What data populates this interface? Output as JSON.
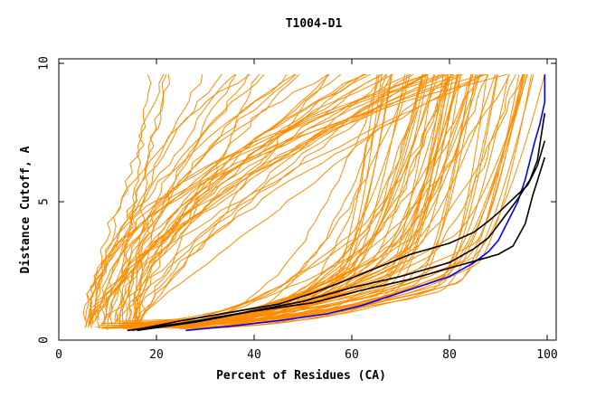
{
  "chart_data": {
    "type": "line",
    "title": "T1004-D1",
    "xlabel": "Percent of Residues (CA)",
    "ylabel": "Distance Cutoff, A",
    "xlim": [
      0,
      100
    ],
    "ylim": [
      0,
      10
    ],
    "xticks": [
      "0",
      "20",
      "40",
      "60",
      "80",
      "100"
    ],
    "yticks": [
      "0",
      "5",
      "10"
    ],
    "grid": false,
    "colors": {
      "highlight": "#0000ff",
      "reference": "#000000",
      "background_models": "#ff8c00"
    },
    "series": [
      {
        "color": "#0000ff",
        "x": [
          26,
          35,
          45,
          55,
          62,
          68,
          75,
          80,
          85,
          88,
          90,
          92,
          94,
          95.5,
          96.5,
          97.5,
          98.5,
          99,
          99.5,
          99.5
        ],
        "y": [
          0.35,
          0.5,
          0.7,
          0.95,
          1.25,
          1.6,
          2.0,
          2.3,
          2.8,
          3.2,
          3.6,
          4.3,
          5.0,
          5.8,
          6.5,
          7.2,
          7.8,
          8.2,
          8.6,
          9.6
        ]
      },
      {
        "color": "#000000",
        "x": [
          15,
          25,
          35,
          45,
          52,
          58,
          65,
          72,
          80,
          85,
          88,
          90,
          93,
          96,
          98,
          99.5
        ],
        "y": [
          0.35,
          0.7,
          1.0,
          1.3,
          1.7,
          2.1,
          2.6,
          3.1,
          3.5,
          3.9,
          4.3,
          4.6,
          5.1,
          5.6,
          6.3,
          7.2
        ]
      },
      {
        "color": "#000000",
        "x": [
          14,
          25,
          38,
          50,
          60,
          70,
          80,
          85,
          88,
          91,
          94,
          96.5,
          98,
          99.5
        ],
        "y": [
          0.35,
          0.6,
          1.0,
          1.4,
          1.9,
          2.3,
          2.8,
          3.3,
          3.7,
          4.4,
          5.1,
          5.8,
          6.5,
          8.2
        ]
      },
      {
        "color": "#000000",
        "x": [
          16,
          28,
          40,
          52,
          62,
          72,
          80,
          86,
          90,
          93,
          95.5,
          97,
          99.5
        ],
        "y": [
          0.35,
          0.65,
          1.05,
          1.35,
          1.8,
          2.2,
          2.6,
          2.9,
          3.1,
          3.4,
          4.2,
          5.2,
          6.6
        ]
      }
    ]
  }
}
